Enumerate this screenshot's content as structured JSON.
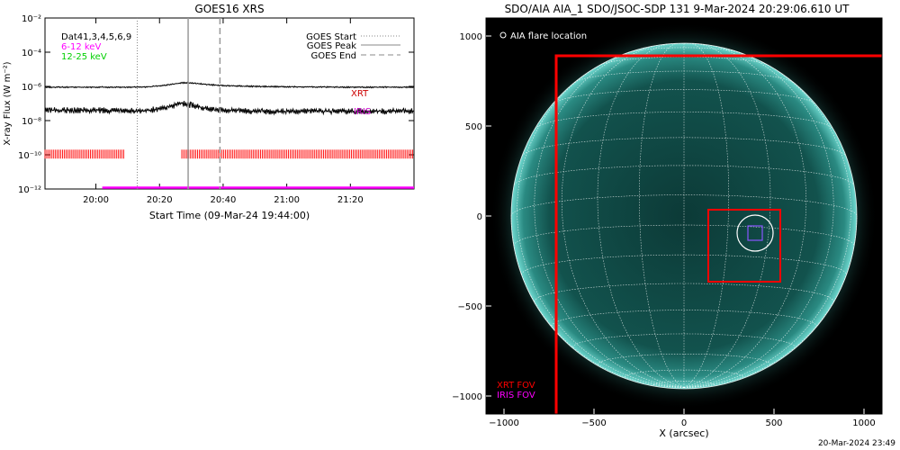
{
  "left_panel": {
    "title": "GOES16 XRS",
    "ylabel": "X-ray Flux (W m⁻²)",
    "xlabel": "Start Time (09-Mar-24 19:44:00)",
    "legend_text": "Dat41,3,4,5,6,9",
    "energy_bands": [
      {
        "label": "6-12 keV",
        "color": "#ff00ff"
      },
      {
        "label": "12-25 keV",
        "color": "#00ff00"
      }
    ],
    "line_legend": [
      {
        "label": "GOES Start",
        "style": "dotted"
      },
      {
        "label": "GOES Peak",
        "style": "solid"
      },
      {
        "label": "GOES End",
        "style": "dashed"
      }
    ],
    "obs_labels": [
      {
        "label": "XRT",
        "color": "#cc0000"
      },
      {
        "label": "IRIS",
        "color": "#cc00cc"
      }
    ]
  },
  "right_panel": {
    "title": "SDO/AIA AIA_1 SDO/JSOC-SDP 131  9-Mar-2024 20:29:06.610 UT",
    "legend": "AIA flare location",
    "xlabel": "X (arcsec)",
    "fov_labels": [
      {
        "label": "XRT FOV",
        "color": "#ff0000"
      },
      {
        "label": "IRIS FOV",
        "color": "#ff00ff"
      }
    ]
  },
  "footer": {
    "timestamp": "20-Mar-2024 23:49"
  },
  "chart_data": [
    {
      "type": "line",
      "title": "GOES16 XRS",
      "xlabel": "Start Time (09-Mar-24 19:44:00)",
      "ylabel": "X-ray Flux (W m⁻²)",
      "log_y": true,
      "xlim": [
        "19:44",
        "21:40"
      ],
      "ylim": [
        1e-12,
        0.01
      ],
      "x_ticks": [
        "20:00",
        "20:20",
        "20:40",
        "21:00",
        "21:20"
      ],
      "y_ticks": [
        "10⁻²",
        "10⁻⁴",
        "10⁻⁶",
        "10⁻⁸",
        "10⁻¹⁰",
        "10⁻¹²"
      ],
      "series": [
        {
          "x": [
            "19:44",
            "20:00",
            "20:10",
            "20:17",
            "20:22",
            "20:27",
            "20:30",
            "20:35",
            "20:40",
            "20:50",
            "21:00",
            "21:20",
            "21:40"
          ],
          "values": [
            9e-07,
            9e-07,
            9e-07,
            9.5e-07,
            1.2e-06,
            1.6e-06,
            1.6e-06,
            1.3e-06,
            1.1e-06,
            1e-06,
            9.5e-07,
            9e-07,
            9e-07
          ]
        },
        {
          "x": [
            "19:44",
            "20:00",
            "20:10",
            "20:17",
            "20:22",
            "20:27",
            "20:30",
            "20:35",
            "20:40",
            "20:50",
            "21:00",
            "21:20",
            "21:40"
          ],
          "values": [
            4e-08,
            4e-08,
            3.5e-08,
            4e-08,
            6e-08,
            1e-07,
            8e-08,
            5e-08,
            4e-08,
            3.5e-08,
            3.5e-08,
            3.5e-08,
            3.5e-08
          ]
        }
      ],
      "event_lines": {
        "GOES Start": "20:13",
        "GOES Peak": "20:29",
        "GOES End": "20:39"
      },
      "xrt_obs_ranges": [
        [
          "19:44",
          "20:09"
        ],
        [
          "20:27",
          "21:40"
        ]
      ],
      "iris_obs_ranges": [
        [
          "20:02",
          "21:40"
        ]
      ]
    },
    {
      "type": "scatter",
      "title": "SDO/AIA AIA_1 SDO/JSOC-SDP 131  9-Mar-2024 20:29:06.610 UT",
      "xlabel": "X (arcsec)",
      "xlim": [
        -1100,
        1100
      ],
      "ylim": [
        -1100,
        1100
      ],
      "x_ticks": [
        -1000,
        -500,
        0,
        500,
        1000
      ],
      "y_ticks": [
        1000,
        500,
        0,
        -500,
        -1000
      ],
      "flare_location": {
        "x": 395,
        "y": -95
      },
      "xrt_fov": {
        "x": [
          -710,
          1110
        ],
        "y": [
          -1110,
          890
        ]
      },
      "xrt_fov_small": {
        "x": [
          135,
          535
        ],
        "y": [
          -365,
          35
        ]
      }
    }
  ]
}
